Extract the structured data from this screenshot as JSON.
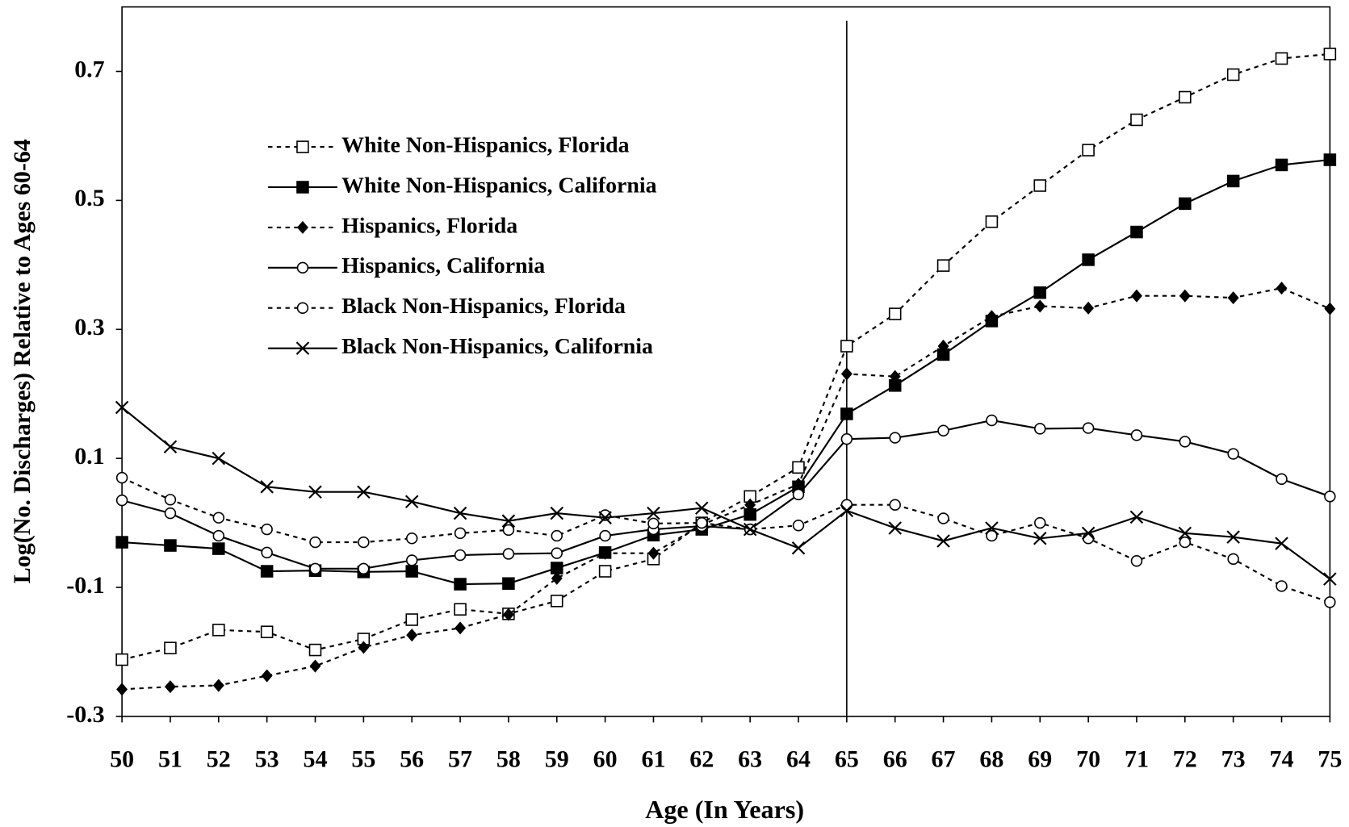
{
  "chart_data": {
    "type": "line",
    "y_label": "Log(No. Discharges) Relative to Ages 60-64",
    "x_label": "Age (In Years)",
    "x": [
      50,
      51,
      52,
      53,
      54,
      55,
      56,
      57,
      58,
      59,
      60,
      61,
      62,
      63,
      64,
      65,
      66,
      67,
      68,
      69,
      70,
      71,
      72,
      73,
      74,
      75
    ],
    "xlim": [
      50,
      75
    ],
    "xticks": [
      50,
      51,
      52,
      53,
      54,
      55,
      56,
      57,
      58,
      59,
      60,
      61,
      62,
      63,
      64,
      65,
      66,
      67,
      68,
      69,
      70,
      71,
      72,
      73,
      74,
      75
    ],
    "ylim": [
      -0.3,
      0.8
    ],
    "yticks": [
      -0.3,
      -0.1,
      0.1,
      0.3,
      0.5,
      0.7
    ],
    "vline": 65,
    "legend": "upper left",
    "series": [
      {
        "name": "White Non-Hispanics, Florida",
        "color": "#000000",
        "marker": "square-open",
        "dashed": true,
        "values": [
          -0.212,
          -0.194,
          -0.166,
          -0.169,
          -0.197,
          -0.18,
          -0.15,
          -0.134,
          -0.141,
          -0.121,
          -0.075,
          -0.056,
          0.0,
          0.041,
          0.086,
          0.274,
          0.324,
          0.399,
          0.467,
          0.523,
          0.578,
          0.625,
          0.66,
          0.695,
          0.72,
          0.727
        ]
      },
      {
        "name": "White Non-Hispanics, California",
        "color": "#000000",
        "marker": "square",
        "dashed": false,
        "values": [
          -0.03,
          -0.035,
          -0.04,
          -0.075,
          -0.074,
          -0.076,
          -0.075,
          -0.095,
          -0.094,
          -0.07,
          -0.046,
          -0.019,
          -0.01,
          0.013,
          0.056,
          0.169,
          0.213,
          0.261,
          0.313,
          0.357,
          0.408,
          0.451,
          0.495,
          0.53,
          0.555,
          0.563
        ]
      },
      {
        "name": "Hispanics, Florida",
        "color": "#000000",
        "marker": "diamond",
        "dashed": true,
        "values": [
          -0.258,
          -0.254,
          -0.252,
          -0.237,
          -0.222,
          -0.193,
          -0.174,
          -0.163,
          -0.142,
          -0.086,
          -0.047,
          -0.047,
          -0.003,
          0.028,
          0.06,
          0.231,
          0.227,
          0.274,
          0.32,
          0.336,
          0.333,
          0.352,
          0.352,
          0.349,
          0.364,
          0.332
        ]
      },
      {
        "name": "Hispanics, California",
        "color": "#000000",
        "marker": "circle-open",
        "dashed": false,
        "values": [
          0.035,
          0.015,
          -0.02,
          -0.046,
          -0.071,
          -0.071,
          -0.058,
          -0.05,
          -0.048,
          -0.047,
          -0.02,
          -0.01,
          -0.005,
          -0.01,
          0.044,
          0.13,
          0.132,
          0.143,
          0.159,
          0.146,
          0.147,
          0.136,
          0.126,
          0.107,
          0.068,
          0.041
        ]
      },
      {
        "name": "Black Non-Hispanics, Florida",
        "color": "#000000",
        "marker": "circle-open",
        "dashed": true,
        "values": [
          0.07,
          0.036,
          0.008,
          -0.01,
          -0.03,
          -0.03,
          -0.024,
          -0.016,
          -0.011,
          -0.02,
          0.012,
          -0.001,
          0.0,
          -0.01,
          -0.004,
          0.028,
          0.028,
          0.007,
          -0.02,
          0.0,
          -0.024,
          -0.059,
          -0.03,
          -0.056,
          -0.098,
          -0.123
        ]
      },
      {
        "name": "Black Non-Hispanics, California",
        "color": "#000000",
        "marker": "x",
        "dashed": false,
        "values": [
          0.179,
          0.118,
          0.1,
          0.056,
          0.048,
          0.048,
          0.033,
          0.015,
          0.003,
          0.015,
          0.008,
          0.015,
          0.023,
          -0.01,
          -0.039,
          0.019,
          -0.008,
          -0.028,
          -0.008,
          -0.024,
          -0.016,
          0.009,
          -0.016,
          -0.022,
          -0.032,
          -0.087
        ]
      }
    ]
  }
}
